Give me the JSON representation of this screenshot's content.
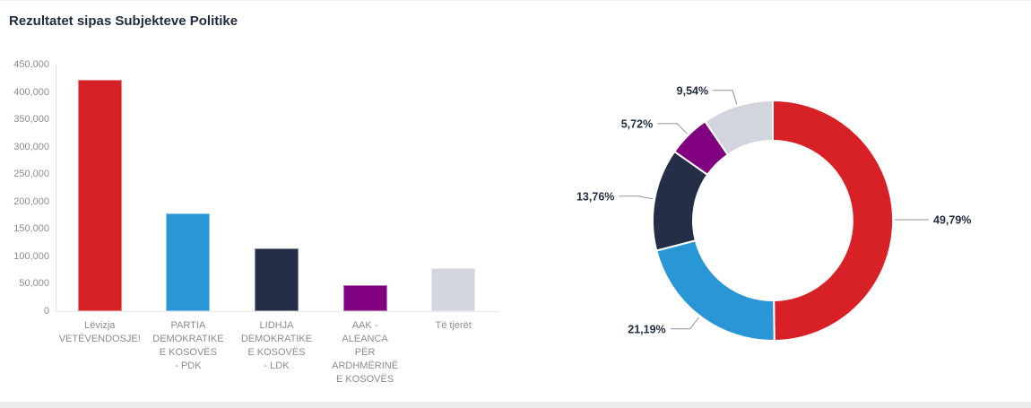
{
  "header": {
    "title": "Rezultatet sipas Subjekteve Politike"
  },
  "colors": {
    "red": "#d82127",
    "blue": "#2996d6",
    "navy": "#252e47",
    "purple": "#800080",
    "gray": "#d2d5dd",
    "heading_text": "#1f2b41",
    "axis_text": "#8c8c8c",
    "leader_line": "#90959e",
    "axis_line": "#e0e0e0"
  },
  "chart_data": [
    {
      "type": "bar",
      "title": "Rezultatet sipas Subjekteve Politike",
      "categories": [
        "Lëvizja\nVETËVENDOSJE!",
        "PARTIA\nDEMOKRATIKE\nE KOSOVËS\n- PDK",
        "LIDHJA\nDEMOKRATIKE\nE KOSOVËS\n- LDK",
        "AAK -\nALEANCA\nPËR\nARDHMËRINË\nE KOSOVËS",
        "Të tjerët"
      ],
      "values": [
        422000,
        178400,
        114500,
        47500,
        78500
      ],
      "bar_colors": [
        "#d82127",
        "#2996d6",
        "#252e47",
        "#800080",
        "#d2d5dd"
      ],
      "xlabel": "",
      "ylabel": "",
      "ylim": [
        0,
        450000
      ],
      "yticks": [
        0,
        50000,
        100000,
        150000,
        200000,
        250000,
        300000,
        350000,
        400000,
        450000
      ],
      "ytick_labels": [
        "0",
        "50,000",
        "100,000",
        "150,000",
        "200,000",
        "250,000",
        "300,000",
        "350,000",
        "400,000",
        "450,000"
      ],
      "grid": false,
      "legend": "none"
    },
    {
      "type": "pie",
      "donut": true,
      "start_angle_deg": 0,
      "direction": "clockwise",
      "legend": "none",
      "slices": [
        {
          "name": "Lëvizja VETËVENDOSJE!",
          "pct": 49.79,
          "label": "49,79%",
          "color": "#d82127"
        },
        {
          "name": "PARTIA DEMOKRATIKE E KOSOVËS - PDK",
          "pct": 21.19,
          "label": "21,19%",
          "color": "#2996d6"
        },
        {
          "name": "LIDHJA DEMOKRATIKE E KOSOVËS - LDK",
          "pct": 13.76,
          "label": "13,76%",
          "color": "#252e47"
        },
        {
          "name": "AAK - ALEANCA PËR ARDHMËRINË E KOSOVËS",
          "pct": 5.72,
          "label": "5,72%",
          "color": "#800080"
        },
        {
          "name": "Të tjerët",
          "pct": 9.54,
          "label": "9,54%",
          "color": "#d2d5dd"
        }
      ]
    }
  ]
}
